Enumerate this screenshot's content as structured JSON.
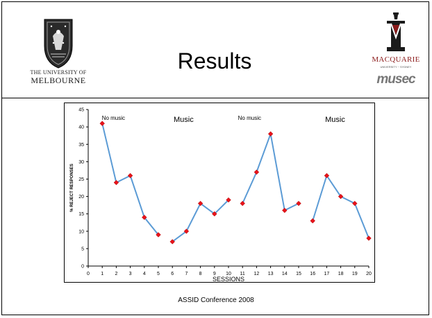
{
  "slide": {
    "title": "Results",
    "footer": "ASSID Conference 2008"
  },
  "logos": {
    "melbourne": {
      "line1": "THE UNIVERSITY OF",
      "line2": "MELBOURNE"
    },
    "macquarie": {
      "name": "MACQUARIE",
      "sub": "UNIVERSITY ~ SYDNEY",
      "musec": "musec"
    }
  },
  "colors": {
    "line": "#5b9bd5",
    "marker": "#e8131b",
    "axis": "#000000"
  },
  "chart_data": {
    "type": "line",
    "xlabel": "SESSIONS",
    "ylabel": "% REJECT RESPONSES",
    "xlim": [
      0,
      20
    ],
    "ylim": [
      0,
      45
    ],
    "xticks": [
      0,
      1,
      2,
      3,
      4,
      5,
      6,
      7,
      8,
      9,
      10,
      11,
      12,
      13,
      14,
      15,
      16,
      17,
      18,
      19,
      20
    ],
    "yticks": [
      0,
      5,
      10,
      15,
      20,
      25,
      30,
      35,
      40,
      45
    ],
    "grid": false,
    "legend": "none",
    "phases": [
      {
        "label": "No music",
        "x_center": 1.8
      },
      {
        "label": "Music",
        "x_center": 6.8
      },
      {
        "label": "No music",
        "x_center": 11.5
      },
      {
        "label": "Music",
        "x_center": 17.6
      }
    ],
    "segments": [
      {
        "x": [
          1,
          2,
          3,
          4,
          5
        ],
        "y": [
          41,
          24,
          26,
          14,
          9
        ]
      },
      {
        "x": [
          6,
          7,
          8,
          9,
          10
        ],
        "y": [
          7,
          10,
          18,
          15,
          19
        ]
      },
      {
        "x": [
          11,
          12,
          13,
          14,
          15
        ],
        "y": [
          18,
          27,
          38,
          16,
          18
        ]
      },
      {
        "x": [
          16,
          17,
          18,
          19,
          20
        ],
        "y": [
          13,
          26,
          20,
          18,
          8
        ]
      }
    ]
  }
}
